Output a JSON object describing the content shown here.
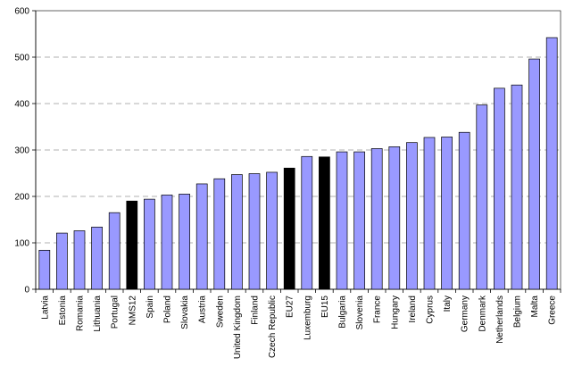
{
  "chart_data": {
    "type": "bar",
    "title": "",
    "xlabel": "",
    "ylabel": "",
    "ylim": [
      0,
      600
    ],
    "yticks": [
      0,
      100,
      200,
      300,
      400,
      500,
      600
    ],
    "grid": "horizontal dashed",
    "categories": [
      "Latvia",
      "Estonia",
      "Romania",
      "Lithuania",
      "Portugal",
      "NMS12",
      "Spain",
      "Poland",
      "Slovakia",
      "Austria",
      "Sweden",
      "United Kingdom",
      "Finland",
      "Czech Republic",
      "EU27",
      "Luxemburg",
      "EU15",
      "Bulgaria",
      "Slovenia",
      "France",
      "Hungary",
      "Ireland",
      "Cyprus",
      "Italy",
      "Germany",
      "Denmark",
      "Netherlands",
      "Belgium",
      "Malta",
      "Greece"
    ],
    "values": [
      84,
      121,
      126,
      134,
      165,
      190,
      194,
      203,
      205,
      227,
      238,
      247,
      249,
      252,
      261,
      286,
      285,
      296,
      296,
      303,
      307,
      316,
      327,
      328,
      338,
      397,
      433,
      440,
      496,
      542
    ],
    "highlighted": [
      "NMS12",
      "EU27",
      "EU15"
    ],
    "colors": {
      "bar": "#9999ff",
      "highlight": "#000000",
      "grid": "#999999",
      "axis": "#000000"
    }
  }
}
